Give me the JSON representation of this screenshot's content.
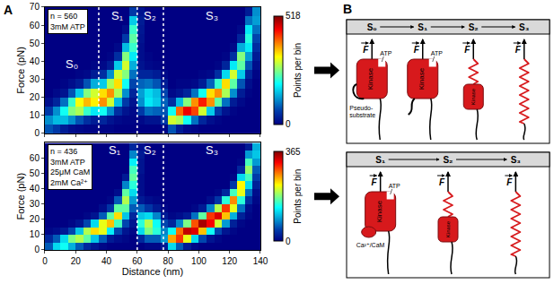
{
  "panel_labels": [
    "A",
    "B"
  ],
  "chart_data": [
    {
      "type": "heatmap",
      "y_label": "Force (pN)",
      "colorbar_label": "Points per bin",
      "annotation_box": [
        "n = 560",
        "3mM ATP"
      ],
      "dividers": [
        35,
        60,
        77
      ],
      "regions": [
        "S₀",
        "S₁",
        "S₂",
        "S₃"
      ],
      "xlim": [
        0,
        140
      ],
      "ylim": [
        0,
        70
      ],
      "xticks": [
        0,
        20,
        40,
        60,
        80,
        100,
        120,
        140
      ],
      "yticks": [
        0,
        10,
        20,
        30,
        40,
        50,
        60,
        70
      ],
      "tick_labels": "y",
      "grid": false,
      "colorbar_range": [
        0,
        518
      ],
      "colorbar_ticks": [
        0,
        518
      ],
      "x": [
        2.5,
        7.5,
        12.5,
        17.5,
        22.5,
        27.5,
        32.5,
        37.5,
        42.5,
        47.5,
        52.5,
        57.5,
        62.5,
        67.5,
        72.5,
        77.5,
        82.5,
        87.5,
        92.5,
        97.5,
        102.5,
        107.5,
        112.5,
        117.5,
        122.5,
        127.5,
        132.5,
        137.5
      ],
      "y": [
        2.5,
        7.5,
        12.5,
        17.5,
        22.5,
        27.5,
        32.5,
        37.5,
        42.5,
        47.5,
        52.5,
        57.5,
        62.5,
        67.5
      ],
      "z_columns": [
        [
          80,
          120,
          60,
          15,
          0,
          0,
          0,
          0,
          0,
          0,
          0,
          0,
          0,
          0
        ],
        [
          60,
          150,
          120,
          40,
          10,
          0,
          0,
          0,
          0,
          0,
          0,
          0,
          0,
          0
        ],
        [
          30,
          150,
          200,
          100,
          20,
          5,
          0,
          0,
          0,
          0,
          0,
          0,
          0,
          0
        ],
        [
          15,
          120,
          260,
          220,
          80,
          15,
          0,
          0,
          0,
          0,
          0,
          0,
          0,
          0
        ],
        [
          10,
          80,
          280,
          320,
          160,
          30,
          5,
          0,
          0,
          0,
          0,
          0,
          0,
          0
        ],
        [
          5,
          50,
          220,
          360,
          260,
          80,
          10,
          0,
          0,
          0,
          0,
          0,
          0,
          0
        ],
        [
          5,
          30,
          180,
          330,
          300,
          140,
          30,
          5,
          0,
          0,
          0,
          0,
          0,
          0
        ],
        [
          5,
          40,
          200,
          380,
          340,
          160,
          50,
          10,
          0,
          0,
          0,
          0,
          0,
          0
        ],
        [
          5,
          20,
          120,
          300,
          380,
          280,
          120,
          30,
          5,
          0,
          0,
          0,
          0,
          0
        ],
        [
          0,
          10,
          50,
          150,
          280,
          340,
          300,
          160,
          50,
          10,
          0,
          0,
          0,
          0
        ],
        [
          0,
          5,
          20,
          60,
          120,
          200,
          260,
          300,
          260,
          150,
          60,
          15,
          0,
          0
        ],
        [
          0,
          5,
          10,
          20,
          40,
          70,
          100,
          140,
          180,
          220,
          240,
          220,
          160,
          60
        ],
        [
          0,
          10,
          60,
          120,
          130,
          90,
          40,
          20,
          15,
          15,
          20,
          25,
          30,
          20
        ],
        [
          0,
          20,
          100,
          180,
          170,
          100,
          40,
          10,
          5,
          0,
          0,
          0,
          0,
          0
        ],
        [
          0,
          20,
          90,
          160,
          150,
          80,
          30,
          5,
          0,
          0,
          0,
          0,
          0,
          0
        ],
        [
          5,
          60,
          80,
          90,
          70,
          30,
          10,
          0,
          0,
          0,
          0,
          0,
          0,
          0
        ],
        [
          80,
          300,
          200,
          50,
          10,
          0,
          0,
          0,
          0,
          0,
          0,
          0,
          0,
          0
        ],
        [
          30,
          280,
          400,
          150,
          20,
          5,
          0,
          0,
          0,
          0,
          0,
          0,
          0,
          0
        ],
        [
          10,
          200,
          460,
          260,
          40,
          5,
          0,
          0,
          0,
          0,
          0,
          0,
          0,
          0
        ],
        [
          5,
          100,
          420,
          380,
          100,
          10,
          0,
          0,
          0,
          0,
          0,
          0,
          0,
          0
        ],
        [
          0,
          40,
          300,
          440,
          200,
          30,
          5,
          0,
          0,
          0,
          0,
          0,
          0,
          0
        ],
        [
          0,
          15,
          160,
          380,
          340,
          90,
          10,
          0,
          0,
          0,
          0,
          0,
          0,
          0
        ],
        [
          0,
          5,
          60,
          240,
          380,
          220,
          50,
          5,
          0,
          0,
          0,
          0,
          0,
          0
        ],
        [
          0,
          0,
          20,
          100,
          280,
          340,
          170,
          40,
          5,
          0,
          0,
          0,
          0,
          0
        ],
        [
          0,
          0,
          5,
          30,
          120,
          240,
          300,
          180,
          50,
          10,
          0,
          0,
          0,
          0
        ],
        [
          0,
          0,
          0,
          10,
          30,
          80,
          160,
          240,
          260,
          140,
          40,
          10,
          0,
          0
        ],
        [
          0,
          0,
          0,
          0,
          5,
          15,
          40,
          80,
          130,
          180,
          210,
          180,
          100,
          30
        ],
        [
          0,
          0,
          0,
          0,
          0,
          0,
          5,
          15,
          30,
          50,
          70,
          100,
          130,
          120
        ]
      ]
    },
    {
      "type": "heatmap",
      "x_label": "Distance (nm)",
      "y_label": "Force (pN)",
      "colorbar_label": "Points per bin",
      "annotation_box": [
        "n = 436",
        "3mM ATP",
        "25μM CaM",
        "2mM Ca²⁺"
      ],
      "dividers": [
        60,
        77
      ],
      "regions": [
        "S₁",
        "S₂",
        "S₃"
      ],
      "xlim": [
        0,
        140
      ],
      "ylim": [
        0,
        70
      ],
      "xticks": [
        0,
        20,
        40,
        60,
        80,
        100,
        120,
        140
      ],
      "yticks": [
        0,
        10,
        20,
        30,
        40,
        50,
        60
      ],
      "grid": false,
      "colorbar_range": [
        0,
        365
      ],
      "colorbar_ticks": [
        0,
        365
      ],
      "x": [
        2.5,
        7.5,
        12.5,
        17.5,
        22.5,
        27.5,
        32.5,
        37.5,
        42.5,
        47.5,
        52.5,
        57.5,
        62.5,
        67.5,
        72.5,
        77.5,
        82.5,
        87.5,
        92.5,
        97.5,
        102.5,
        107.5,
        112.5,
        117.5,
        122.5,
        127.5,
        132.5,
        137.5
      ],
      "y": [
        2.5,
        7.5,
        12.5,
        17.5,
        22.5,
        27.5,
        32.5,
        37.5,
        42.5,
        47.5,
        52.5,
        57.5,
        62.5,
        67.5
      ],
      "z_columns": [
        [
          60,
          30,
          5,
          0,
          0,
          0,
          0,
          0,
          0,
          0,
          0,
          0,
          0,
          0
        ],
        [
          120,
          60,
          10,
          0,
          0,
          0,
          0,
          0,
          0,
          0,
          0,
          0,
          0,
          0
        ],
        [
          140,
          120,
          20,
          0,
          0,
          0,
          0,
          0,
          0,
          0,
          0,
          0,
          0,
          0
        ],
        [
          100,
          180,
          50,
          5,
          0,
          0,
          0,
          0,
          0,
          0,
          0,
          0,
          0,
          0
        ],
        [
          60,
          200,
          110,
          15,
          0,
          0,
          0,
          0,
          0,
          0,
          0,
          0,
          0,
          0
        ],
        [
          30,
          170,
          200,
          50,
          5,
          0,
          0,
          0,
          0,
          0,
          0,
          0,
          0,
          0
        ],
        [
          15,
          110,
          240,
          120,
          15,
          0,
          0,
          0,
          0,
          0,
          0,
          0,
          0,
          0
        ],
        [
          5,
          60,
          220,
          220,
          60,
          10,
          0,
          0,
          0,
          0,
          0,
          0,
          0,
          0
        ],
        [
          0,
          20,
          130,
          250,
          170,
          40,
          5,
          0,
          0,
          0,
          0,
          0,
          0,
          0
        ],
        [
          0,
          10,
          50,
          160,
          240,
          170,
          60,
          10,
          0,
          0,
          0,
          0,
          0,
          0
        ],
        [
          0,
          5,
          15,
          50,
          110,
          170,
          200,
          170,
          80,
          20,
          0,
          0,
          0,
          0
        ],
        [
          0,
          0,
          5,
          15,
          30,
          60,
          90,
          120,
          150,
          170,
          160,
          130,
          80,
          30
        ],
        [
          0,
          30,
          120,
          150,
          110,
          60,
          20,
          10,
          10,
          10,
          15,
          15,
          20,
          10
        ],
        [
          5,
          60,
          180,
          200,
          120,
          40,
          10,
          0,
          0,
          0,
          0,
          0,
          0,
          0
        ],
        [
          5,
          60,
          150,
          140,
          80,
          20,
          5,
          0,
          0,
          0,
          0,
          0,
          0,
          0
        ],
        [
          20,
          90,
          80,
          50,
          20,
          5,
          0,
          0,
          0,
          0,
          0,
          0,
          0,
          0
        ],
        [
          120,
          260,
          140,
          30,
          5,
          0,
          0,
          0,
          0,
          0,
          0,
          0,
          0,
          0
        ],
        [
          60,
          300,
          280,
          80,
          10,
          0,
          0,
          0,
          0,
          0,
          0,
          0,
          0,
          0
        ],
        [
          20,
          220,
          340,
          180,
          20,
          0,
          0,
          0,
          0,
          0,
          0,
          0,
          0,
          0
        ],
        [
          5,
          120,
          330,
          290,
          70,
          5,
          0,
          0,
          0,
          0,
          0,
          0,
          0,
          0
        ],
        [
          0,
          50,
          250,
          350,
          170,
          20,
          0,
          0,
          0,
          0,
          0,
          0,
          0,
          0
        ],
        [
          0,
          15,
          140,
          320,
          300,
          80,
          10,
          0,
          0,
          0,
          0,
          0,
          0,
          0
        ],
        [
          0,
          5,
          50,
          210,
          330,
          200,
          40,
          5,
          0,
          0,
          0,
          0,
          0,
          0
        ],
        [
          0,
          0,
          15,
          90,
          250,
          300,
          150,
          30,
          0,
          0,
          0,
          0,
          0,
          0
        ],
        [
          0,
          0,
          5,
          25,
          100,
          220,
          270,
          160,
          40,
          5,
          0,
          0,
          0,
          0
        ],
        [
          0,
          0,
          0,
          5,
          25,
          70,
          150,
          220,
          230,
          120,
          30,
          5,
          0,
          0
        ],
        [
          0,
          0,
          0,
          0,
          5,
          10,
          35,
          70,
          120,
          160,
          190,
          160,
          90,
          20
        ],
        [
          0,
          0,
          0,
          0,
          0,
          0,
          5,
          10,
          25,
          45,
          60,
          90,
          110,
          100
        ]
      ]
    }
  ],
  "diagram": {
    "rows": [
      {
        "states": [
          "S₀",
          "S₁",
          "S₂",
          "S₃"
        ],
        "force": "F",
        "kinase": "Kinase",
        "atp": "ATP",
        "domain": [
          "Pseudo-",
          "substrate"
        ]
      },
      {
        "states": [
          "S₁",
          "S₂",
          "S₃"
        ],
        "force": "F",
        "kinase": "Kinase",
        "atp": "ATP",
        "domain": [
          "Ca²⁺/CaM"
        ]
      }
    ]
  }
}
